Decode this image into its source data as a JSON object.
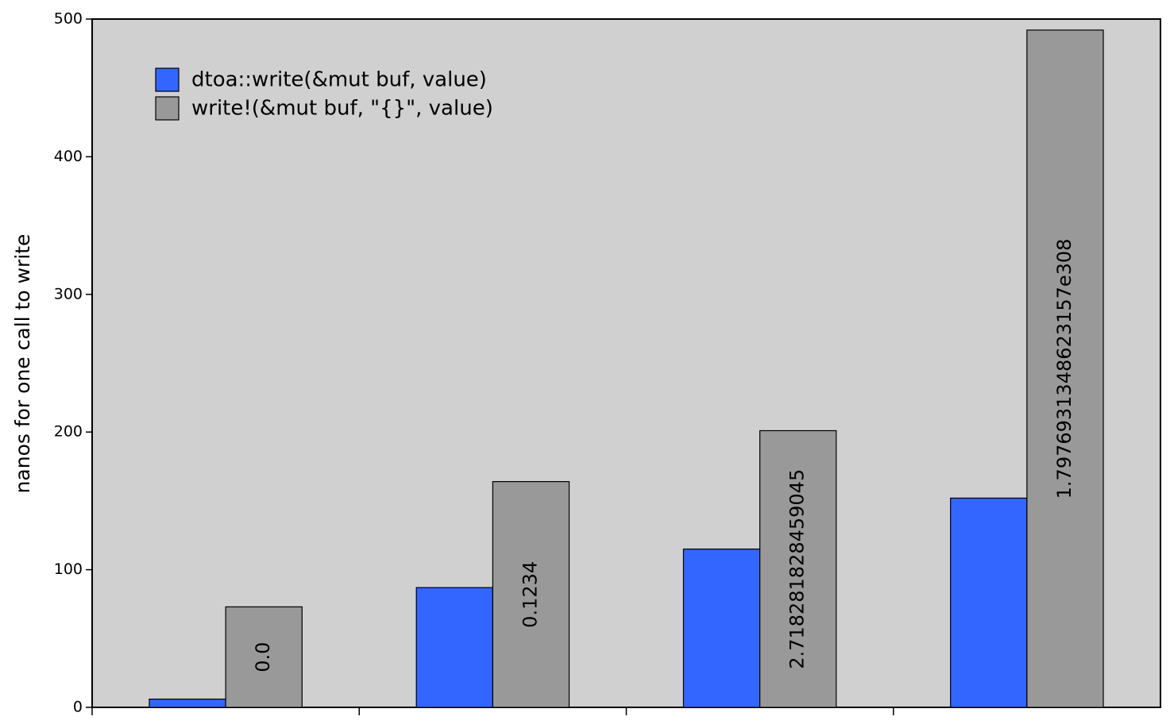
{
  "chart_data": {
    "type": "bar",
    "y_label": "nanos for one call to write",
    "categories": [
      "0.0",
      "0.1234",
      "2.718281828459045",
      "1.7976931348623157e308"
    ],
    "series": [
      {
        "name": "dtoa::write(&mut buf, value)",
        "color": "#3366ff",
        "values": [
          6,
          87,
          115,
          152
        ]
      },
      {
        "name": "write!(&mut buf, \"{}\", value)",
        "color": "#999999",
        "values": [
          73,
          164,
          201,
          492
        ]
      }
    ],
    "ylim": [
      0,
      500
    ],
    "yticks": [
      0,
      100,
      200,
      300,
      400,
      500
    ],
    "background": "#d0d0d0",
    "legend": "upper left"
  }
}
